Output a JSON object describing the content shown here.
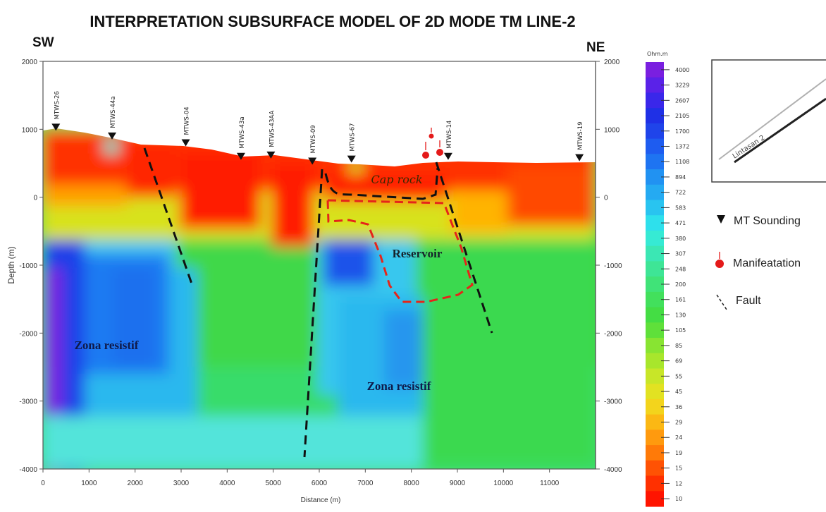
{
  "title": "INTERPRETATION SUBSURFACE MODEL OF 2D MODE TM LINE-2",
  "direction": {
    "left": "SW",
    "right": "NE"
  },
  "axes": {
    "ylabel": "Depth (m)",
    "xlabel": "Distance (m)",
    "x_ticks": [
      "0",
      "1000",
      "2000",
      "3000",
      "4000",
      "5000",
      "6000",
      "7000",
      "8000",
      "9000",
      "10000",
      "11000"
    ],
    "y_ticks": [
      "2000",
      "1000",
      "0",
      "-1000",
      "-2000",
      "-3000",
      "-4000"
    ],
    "xlim": [
      0,
      12000
    ],
    "ylim": [
      -4000,
      2000
    ]
  },
  "stations": [
    {
      "name": "MTWS-26",
      "x": 280,
      "z": 1000
    },
    {
      "name": "MTWS-44a",
      "x": 1500,
      "z": 870
    },
    {
      "name": "MTWS-04",
      "x": 3100,
      "z": 770
    },
    {
      "name": "MTWS-43a",
      "x": 4300,
      "z": 570
    },
    {
      "name": "MTWS-43AA",
      "x": 4950,
      "z": 590
    },
    {
      "name": "MTWS-09",
      "x": 5850,
      "z": 500
    },
    {
      "name": "MTWS-67",
      "x": 6700,
      "z": 530
    },
    {
      "name": "MTWS-14",
      "x": 8800,
      "z": 570
    },
    {
      "name": "MTWS-19",
      "x": 11650,
      "z": 550
    }
  ],
  "annotations": {
    "cap_rock": "Cap rock",
    "reservoir": "Reservoir",
    "zona_left": "Zona resistif",
    "zona_center": "Zona resistif"
  },
  "colorbar": {
    "unit": "Ohm.m",
    "values": [
      "4000",
      "3229",
      "2607",
      "2105",
      "1700",
      "1372",
      "1108",
      "894",
      "722",
      "583",
      "471",
      "380",
      "307",
      "248",
      "200",
      "161",
      "130",
      "105",
      "85",
      "69",
      "55",
      "45",
      "36",
      "29",
      "24",
      "19",
      "15",
      "12",
      "10"
    ]
  },
  "inset": {
    "label": "Lintasan 2"
  },
  "legend": {
    "mt": "MT Sounding",
    "manifestation": "Manifeatation",
    "fault": "Fault"
  },
  "colors": {
    "conductive": "#ff1a00",
    "moderate": "#3fdc3a",
    "resistive": "#1e5ef0",
    "very_resistive": "#7a1fe0",
    "fault_line": "#111111",
    "reservoir_outline": "#e5251a"
  }
}
